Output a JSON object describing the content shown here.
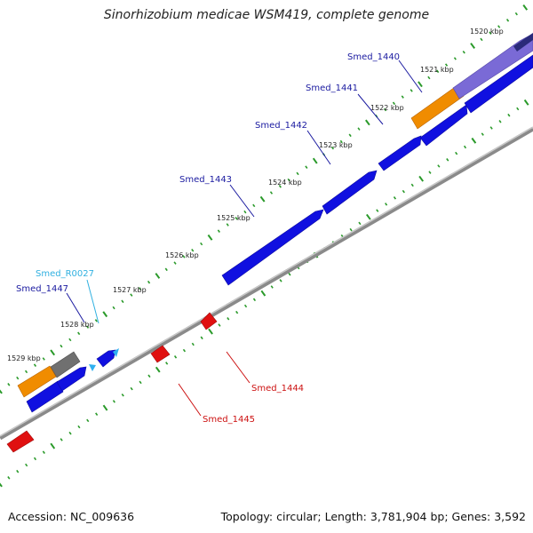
{
  "title": "Sinorhizobium medicae WSM419, complete genome",
  "footer": {
    "accession": "Accession: NC_009636",
    "summary": "Topology: circular; Length: 3,781,904 bp; Genes: 3,592"
  },
  "colors": {
    "forward_gene": "#1010e0",
    "reverse_gene": "#e01010",
    "rna": "#30b0f0",
    "orange_feature": "#f08c00",
    "gray_feature": "#707070",
    "purple_feature": "#7a6ad6",
    "tick": "#2a9a2a",
    "backbone": "#888888",
    "label_forward": "#1a1aa0",
    "label_reverse": "#cc1010",
    "label_rna": "#30b0e0"
  },
  "scale_ticks": [
    "1520 kbp",
    "1521 kbp",
    "1522 kbp",
    "1523 kbp",
    "1524 kbp",
    "1525 kbp",
    "1526 kbp",
    "1527 kbp",
    "1528 kbp",
    "1529 kbp"
  ],
  "gene_labels": [
    {
      "id": "Smed_1440",
      "kind": "forward"
    },
    {
      "id": "Smed_1441",
      "kind": "forward"
    },
    {
      "id": "Smed_1442",
      "kind": "forward"
    },
    {
      "id": "Smed_1443",
      "kind": "forward"
    },
    {
      "id": "Smed_R0027",
      "kind": "rna"
    },
    {
      "id": "Smed_1447",
      "kind": "forward"
    },
    {
      "id": "Smed_1444",
      "kind": "reverse"
    },
    {
      "id": "Smed_1445",
      "kind": "reverse"
    }
  ]
}
